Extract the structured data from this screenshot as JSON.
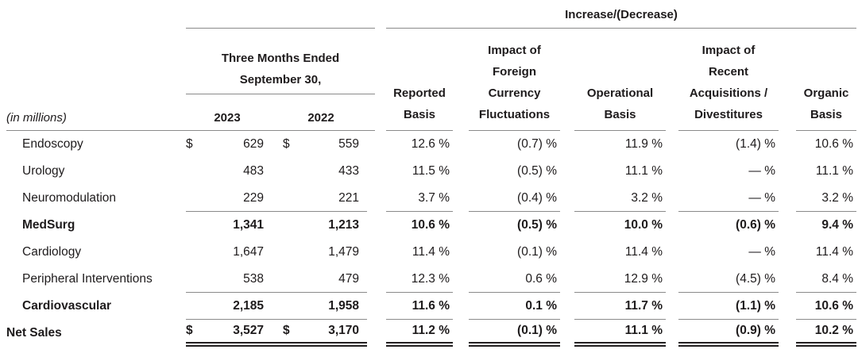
{
  "table": {
    "units_label": "(in millions)",
    "currency_symbol": "$",
    "increase_decrease_label": "Increase/(Decrease)",
    "period_header": {
      "line1": "Three Months Ended",
      "line2": "September 30,",
      "year_left": "2023",
      "year_right": "2022"
    },
    "pct_columns": [
      {
        "lines": [
          "Reported",
          "Basis"
        ]
      },
      {
        "lines": [
          "Impact of",
          "Foreign",
          "Currency",
          "Fluctuations"
        ]
      },
      {
        "lines": [
          "Operational",
          "Basis"
        ]
      },
      {
        "lines": [
          "Impact of",
          "Recent",
          "Acquisitions /",
          "Divestitures"
        ]
      },
      {
        "lines": [
          "Organic",
          "Basis"
        ]
      }
    ],
    "rows": [
      {
        "label": "Endoscopy",
        "v2023": "629",
        "v2022": "559",
        "reported": "12.6 %",
        "fx": "(0.7) %",
        "operational": "11.9 %",
        "acq": "(1.4) %",
        "organic": "10.6 %"
      },
      {
        "label": "Urology",
        "v2023": "483",
        "v2022": "433",
        "reported": "11.5 %",
        "fx": "(0.5) %",
        "operational": "11.1 %",
        "acq": "— %",
        "organic": "11.1 %"
      },
      {
        "label": "Neuromodulation",
        "v2023": "229",
        "v2022": "221",
        "reported": "3.7 %",
        "fx": "(0.4) %",
        "operational": "3.2 %",
        "acq": "— %",
        "organic": "3.2 %"
      },
      {
        "label": "MedSurg",
        "v2023": "1,341",
        "v2022": "1,213",
        "reported": "10.6 %",
        "fx": "(0.5) %",
        "operational": "10.0 %",
        "acq": "(0.6) %",
        "organic": "9.4 %"
      },
      {
        "label": "Cardiology",
        "v2023": "1,647",
        "v2022": "1,479",
        "reported": "11.4 %",
        "fx": "(0.1) %",
        "operational": "11.4 %",
        "acq": "— %",
        "organic": "11.4 %"
      },
      {
        "label": "Peripheral Interventions",
        "v2023": "538",
        "v2022": "479",
        "reported": "12.3 %",
        "fx": "0.6 %",
        "operational": "12.9 %",
        "acq": "(4.5) %",
        "organic": "8.4 %"
      },
      {
        "label": "Cardiovascular",
        "v2023": "2,185",
        "v2022": "1,958",
        "reported": "11.6 %",
        "fx": "0.1 %",
        "operational": "11.7 %",
        "acq": "(1.1) %",
        "organic": "10.6 %"
      },
      {
        "label": "Net Sales",
        "v2023": "3,527",
        "v2022": "3,170",
        "reported": "11.2 %",
        "fx": "(0.1) %",
        "operational": "11.1 %",
        "acq": "(0.9) %",
        "organic": "10.2 %"
      }
    ]
  }
}
